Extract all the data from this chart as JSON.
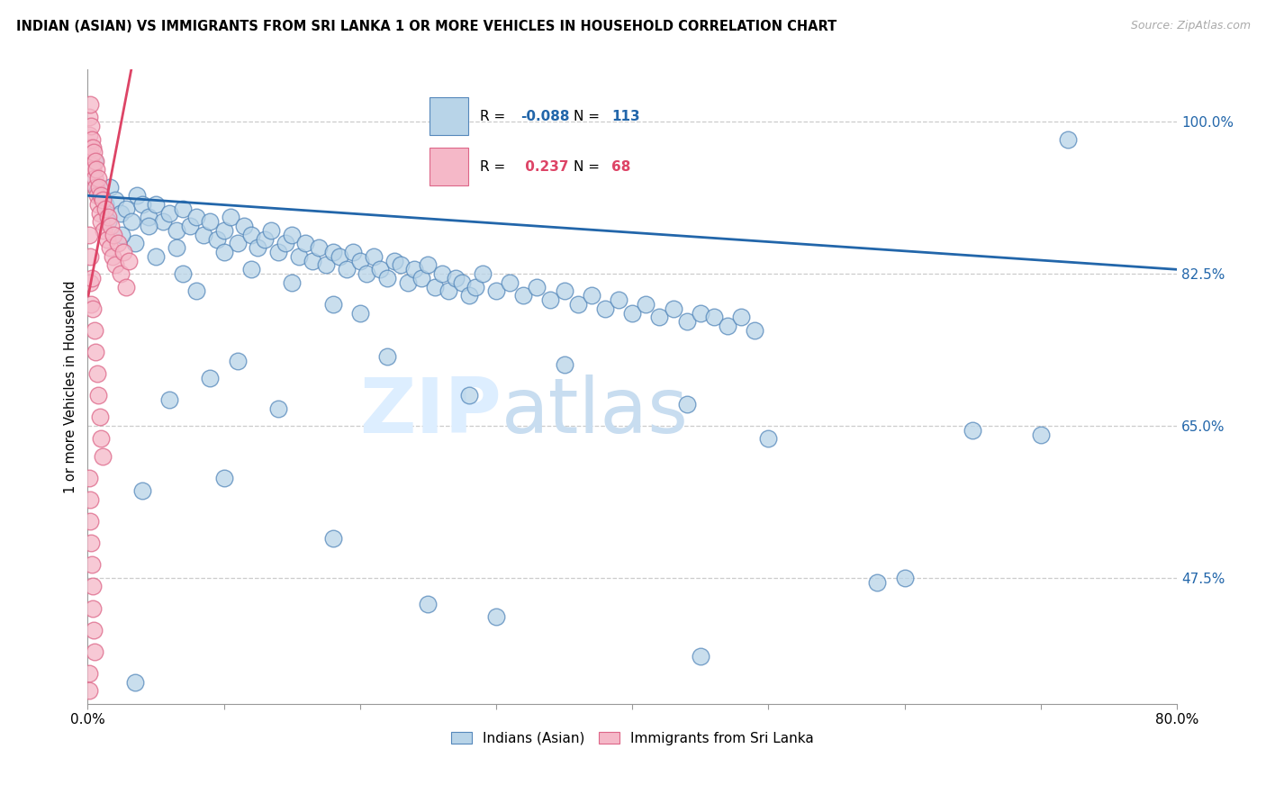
{
  "title": "INDIAN (ASIAN) VS IMMIGRANTS FROM SRI LANKA 1 OR MORE VEHICLES IN HOUSEHOLD CORRELATION CHART",
  "source": "Source: ZipAtlas.com",
  "ylabel": "1 or more Vehicles in Household",
  "xlim": [
    0.0,
    80.0
  ],
  "ylim": [
    33.0,
    106.0
  ],
  "yticks": [
    47.5,
    65.0,
    82.5,
    100.0
  ],
  "blue_R": -0.088,
  "blue_N": 113,
  "pink_R": 0.237,
  "pink_N": 68,
  "legend_label_blue": "Indians (Asian)",
  "legend_label_pink": "Immigrants from Sri Lanka",
  "blue_color": "#b8d4e8",
  "blue_edge": "#5588bb",
  "pink_color": "#f5b8c8",
  "pink_edge": "#dd6688",
  "trendline_blue": "#2266aa",
  "trendline_pink": "#dd4466",
  "watermark_zip": "ZIP",
  "watermark_atlas": "atlas",
  "blue_trend_x0": 0.0,
  "blue_trend_y0": 91.5,
  "blue_trend_x1": 80.0,
  "blue_trend_y1": 83.0,
  "pink_trend_x0": 0.05,
  "pink_trend_y0": 80.0,
  "pink_trend_x1": 3.2,
  "pink_trend_y1": 106.0,
  "blue_scatter": [
    [
      0.3,
      93.0
    ],
    [
      0.5,
      95.5
    ],
    [
      0.7,
      92.0
    ],
    [
      1.0,
      91.5
    ],
    [
      1.3,
      90.5
    ],
    [
      1.6,
      92.5
    ],
    [
      2.0,
      91.0
    ],
    [
      2.4,
      89.5
    ],
    [
      2.8,
      90.0
    ],
    [
      3.2,
      88.5
    ],
    [
      3.6,
      91.5
    ],
    [
      4.0,
      90.5
    ],
    [
      4.5,
      89.0
    ],
    [
      5.0,
      90.5
    ],
    [
      5.5,
      88.5
    ],
    [
      6.0,
      89.5
    ],
    [
      6.5,
      87.5
    ],
    [
      7.0,
      90.0
    ],
    [
      7.5,
      88.0
    ],
    [
      8.0,
      89.0
    ],
    [
      8.5,
      87.0
    ],
    [
      9.0,
      88.5
    ],
    [
      9.5,
      86.5
    ],
    [
      10.0,
      87.5
    ],
    [
      10.5,
      89.0
    ],
    [
      11.0,
      86.0
    ],
    [
      11.5,
      88.0
    ],
    [
      12.0,
      87.0
    ],
    [
      12.5,
      85.5
    ],
    [
      13.0,
      86.5
    ],
    [
      13.5,
      87.5
    ],
    [
      14.0,
      85.0
    ],
    [
      14.5,
      86.0
    ],
    [
      15.0,
      87.0
    ],
    [
      15.5,
      84.5
    ],
    [
      16.0,
      86.0
    ],
    [
      16.5,
      84.0
    ],
    [
      17.0,
      85.5
    ],
    [
      17.5,
      83.5
    ],
    [
      18.0,
      85.0
    ],
    [
      18.5,
      84.5
    ],
    [
      19.0,
      83.0
    ],
    [
      19.5,
      85.0
    ],
    [
      20.0,
      84.0
    ],
    [
      20.5,
      82.5
    ],
    [
      21.0,
      84.5
    ],
    [
      21.5,
      83.0
    ],
    [
      22.0,
      82.0
    ],
    [
      22.5,
      84.0
    ],
    [
      23.0,
      83.5
    ],
    [
      23.5,
      81.5
    ],
    [
      24.0,
      83.0
    ],
    [
      24.5,
      82.0
    ],
    [
      25.0,
      83.5
    ],
    [
      25.5,
      81.0
    ],
    [
      26.0,
      82.5
    ],
    [
      26.5,
      80.5
    ],
    [
      27.0,
      82.0
    ],
    [
      27.5,
      81.5
    ],
    [
      28.0,
      80.0
    ],
    [
      28.5,
      81.0
    ],
    [
      29.0,
      82.5
    ],
    [
      30.0,
      80.5
    ],
    [
      31.0,
      81.5
    ],
    [
      32.0,
      80.0
    ],
    [
      33.0,
      81.0
    ],
    [
      34.0,
      79.5
    ],
    [
      35.0,
      80.5
    ],
    [
      36.0,
      79.0
    ],
    [
      37.0,
      80.0
    ],
    [
      38.0,
      78.5
    ],
    [
      39.0,
      79.5
    ],
    [
      40.0,
      78.0
    ],
    [
      41.0,
      79.0
    ],
    [
      42.0,
      77.5
    ],
    [
      43.0,
      78.5
    ],
    [
      44.0,
      77.0
    ],
    [
      45.0,
      78.0
    ],
    [
      46.0,
      77.5
    ],
    [
      47.0,
      76.5
    ],
    [
      48.0,
      77.5
    ],
    [
      49.0,
      76.0
    ],
    [
      3.5,
      86.0
    ],
    [
      5.0,
      84.5
    ],
    [
      7.0,
      82.5
    ],
    [
      10.0,
      85.0
    ],
    [
      12.0,
      83.0
    ],
    [
      15.0,
      81.5
    ],
    [
      18.0,
      79.0
    ],
    [
      8.0,
      80.5
    ],
    [
      4.5,
      88.0
    ],
    [
      6.5,
      85.5
    ],
    [
      2.5,
      87.0
    ],
    [
      1.5,
      88.5
    ],
    [
      20.0,
      78.0
    ],
    [
      6.0,
      68.0
    ],
    [
      9.0,
      70.5
    ],
    [
      11.0,
      72.5
    ],
    [
      14.0,
      67.0
    ],
    [
      22.0,
      73.0
    ],
    [
      28.0,
      68.5
    ],
    [
      35.0,
      72.0
    ],
    [
      44.0,
      67.5
    ],
    [
      50.0,
      63.5
    ],
    [
      58.0,
      47.0
    ],
    [
      60.0,
      47.5
    ],
    [
      65.0,
      64.5
    ],
    [
      70.0,
      64.0
    ],
    [
      72.0,
      98.0
    ],
    [
      4.0,
      57.5
    ],
    [
      10.0,
      59.0
    ],
    [
      18.0,
      52.0
    ],
    [
      25.0,
      44.5
    ],
    [
      30.0,
      43.0
    ],
    [
      45.0,
      38.5
    ],
    [
      3.5,
      35.5
    ]
  ],
  "pink_scatter": [
    [
      0.08,
      100.5
    ],
    [
      0.12,
      98.5
    ],
    [
      0.15,
      102.0
    ],
    [
      0.18,
      97.0
    ],
    [
      0.22,
      99.5
    ],
    [
      0.25,
      96.0
    ],
    [
      0.28,
      98.0
    ],
    [
      0.3,
      95.0
    ],
    [
      0.35,
      97.0
    ],
    [
      0.4,
      94.5
    ],
    [
      0.45,
      96.5
    ],
    [
      0.5,
      93.5
    ],
    [
      0.55,
      95.5
    ],
    [
      0.6,
      92.5
    ],
    [
      0.65,
      94.5
    ],
    [
      0.7,
      91.5
    ],
    [
      0.75,
      93.5
    ],
    [
      0.8,
      90.5
    ],
    [
      0.85,
      92.5
    ],
    [
      0.9,
      89.5
    ],
    [
      0.95,
      91.5
    ],
    [
      1.0,
      88.5
    ],
    [
      1.1,
      91.0
    ],
    [
      1.2,
      87.5
    ],
    [
      1.3,
      90.0
    ],
    [
      1.4,
      86.5
    ],
    [
      1.5,
      89.0
    ],
    [
      1.6,
      85.5
    ],
    [
      1.7,
      88.0
    ],
    [
      1.8,
      84.5
    ],
    [
      1.9,
      87.0
    ],
    [
      2.0,
      83.5
    ],
    [
      2.2,
      86.0
    ],
    [
      2.4,
      82.5
    ],
    [
      2.6,
      85.0
    ],
    [
      2.8,
      81.0
    ],
    [
      3.0,
      84.0
    ],
    [
      0.1,
      87.0
    ],
    [
      0.15,
      84.5
    ],
    [
      0.2,
      81.5
    ],
    [
      0.25,
      79.0
    ],
    [
      0.3,
      82.0
    ],
    [
      0.4,
      78.5
    ],
    [
      0.5,
      76.0
    ],
    [
      0.6,
      73.5
    ],
    [
      0.7,
      71.0
    ],
    [
      0.8,
      68.5
    ],
    [
      0.9,
      66.0
    ],
    [
      1.0,
      63.5
    ],
    [
      1.1,
      61.5
    ],
    [
      0.1,
      59.0
    ],
    [
      0.15,
      56.5
    ],
    [
      0.2,
      54.0
    ],
    [
      0.25,
      51.5
    ],
    [
      0.3,
      49.0
    ],
    [
      0.35,
      46.5
    ],
    [
      0.4,
      44.0
    ],
    [
      0.45,
      41.5
    ],
    [
      0.5,
      39.0
    ],
    [
      0.08,
      36.5
    ],
    [
      0.12,
      34.5
    ]
  ]
}
